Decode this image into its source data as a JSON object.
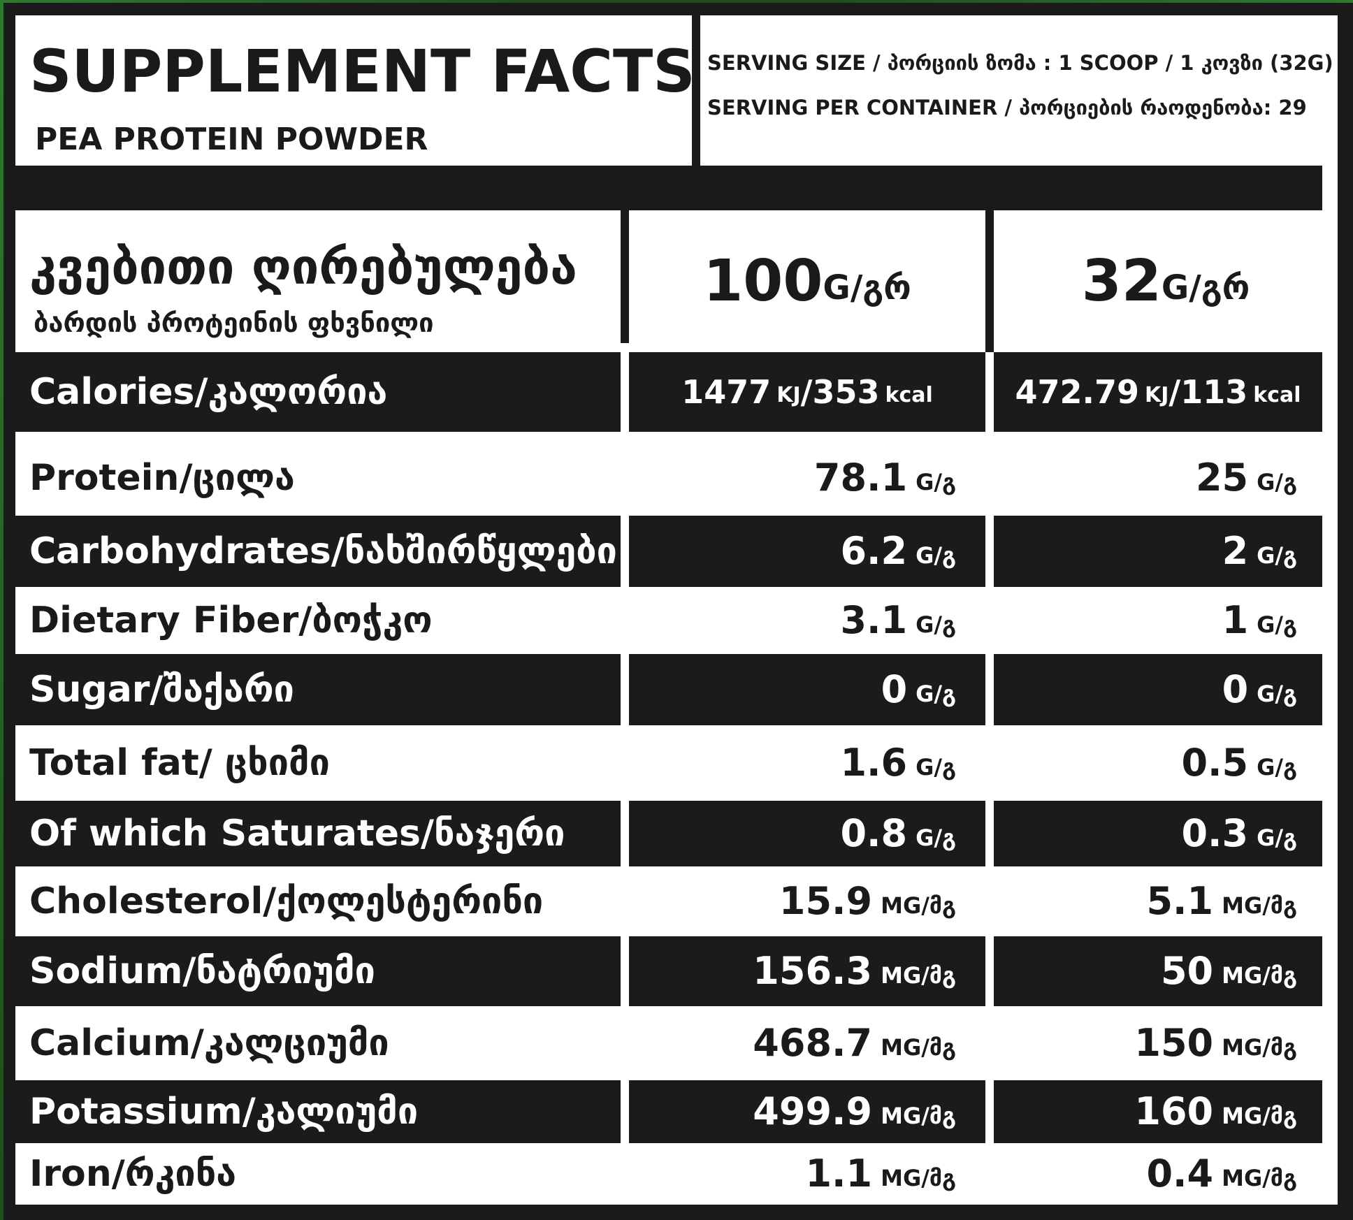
{
  "header": {
    "title": "SUPPLEMENT FACTS",
    "product": "PEA PROTEIN POWDER",
    "serving_size": "SERVING SIZE / პორციის ზომა : 1  SCOOP / 1 კოვზი (32G)",
    "servings_per_container": "SERVING PER CONTAINER / პორციების რაოდენობა: 29"
  },
  "column_header": {
    "title": "კვებითი ღირებულება",
    "subtitle": "ბარდის პროტეინის ფხვნილი",
    "col1_num": "100",
    "col1_unit": "G/გრ",
    "col2_num": "32",
    "col2_unit": "G/გრ"
  },
  "calories": {
    "label": "Calories/კალორია",
    "v1_a": "1477",
    "v1_unit_a": "KJ",
    "v1_b": "/353",
    "v1_unit_b": "kcal",
    "v2_a": "472.79",
    "v2_unit_a": "KJ",
    "v2_b": "/113",
    "v2_unit_b": "kcal"
  },
  "rows": [
    {
      "label": "Protein/ცილა",
      "v1": "78.1",
      "u1": "G/გ",
      "v2": "25",
      "u2": "G/გ"
    },
    {
      "label": "Carbohydrates/ნახშირწყლები",
      "v1": "6.2",
      "u1": "G/გ",
      "v2": "2",
      "u2": "G/გ"
    },
    {
      "label": "Dietary Fiber/ბოჭკო",
      "v1": "3.1",
      "u1": "G/გ",
      "v2": "1",
      "u2": "G/გ"
    },
    {
      "label": "Sugar/შაქარი",
      "v1": "0",
      "u1": "G/გ",
      "v2": "0",
      "u2": "G/გ"
    },
    {
      "label": "Total fat/ ცხიმი",
      "v1": "1.6",
      "u1": "G/გ",
      "v2": "0.5",
      "u2": "G/გ"
    },
    {
      "label": "Of which Saturates/ნაჯერი",
      "v1": "0.8",
      "u1": "G/გ",
      "v2": "0.3",
      "u2": "G/გ"
    },
    {
      "label": "Cholesterol/ქოლესტერინი",
      "v1": "15.9",
      "u1": "MG/მგ",
      "v2": "5.1",
      "u2": "MG/მგ"
    },
    {
      "label": "Sodium/ნატრიუმი",
      "v1": "156.3",
      "u1": "MG/მგ",
      "v2": "50",
      "u2": "MG/მგ"
    },
    {
      "label": "Calcium/კალციუმი",
      "v1": "468.7",
      "u1": "MG/მგ",
      "v2": "150",
      "u2": "MG/მგ"
    },
    {
      "label": "Potassium/კალიუმი",
      "v1": "499.9",
      "u1": "MG/მგ",
      "v2": "160",
      "u2": "MG/მგ"
    },
    {
      "label": "Iron/რკინა",
      "v1": "1.1",
      "u1": "MG/მგ",
      "v2": "0.4",
      "u2": "MG/მგ"
    }
  ]
}
